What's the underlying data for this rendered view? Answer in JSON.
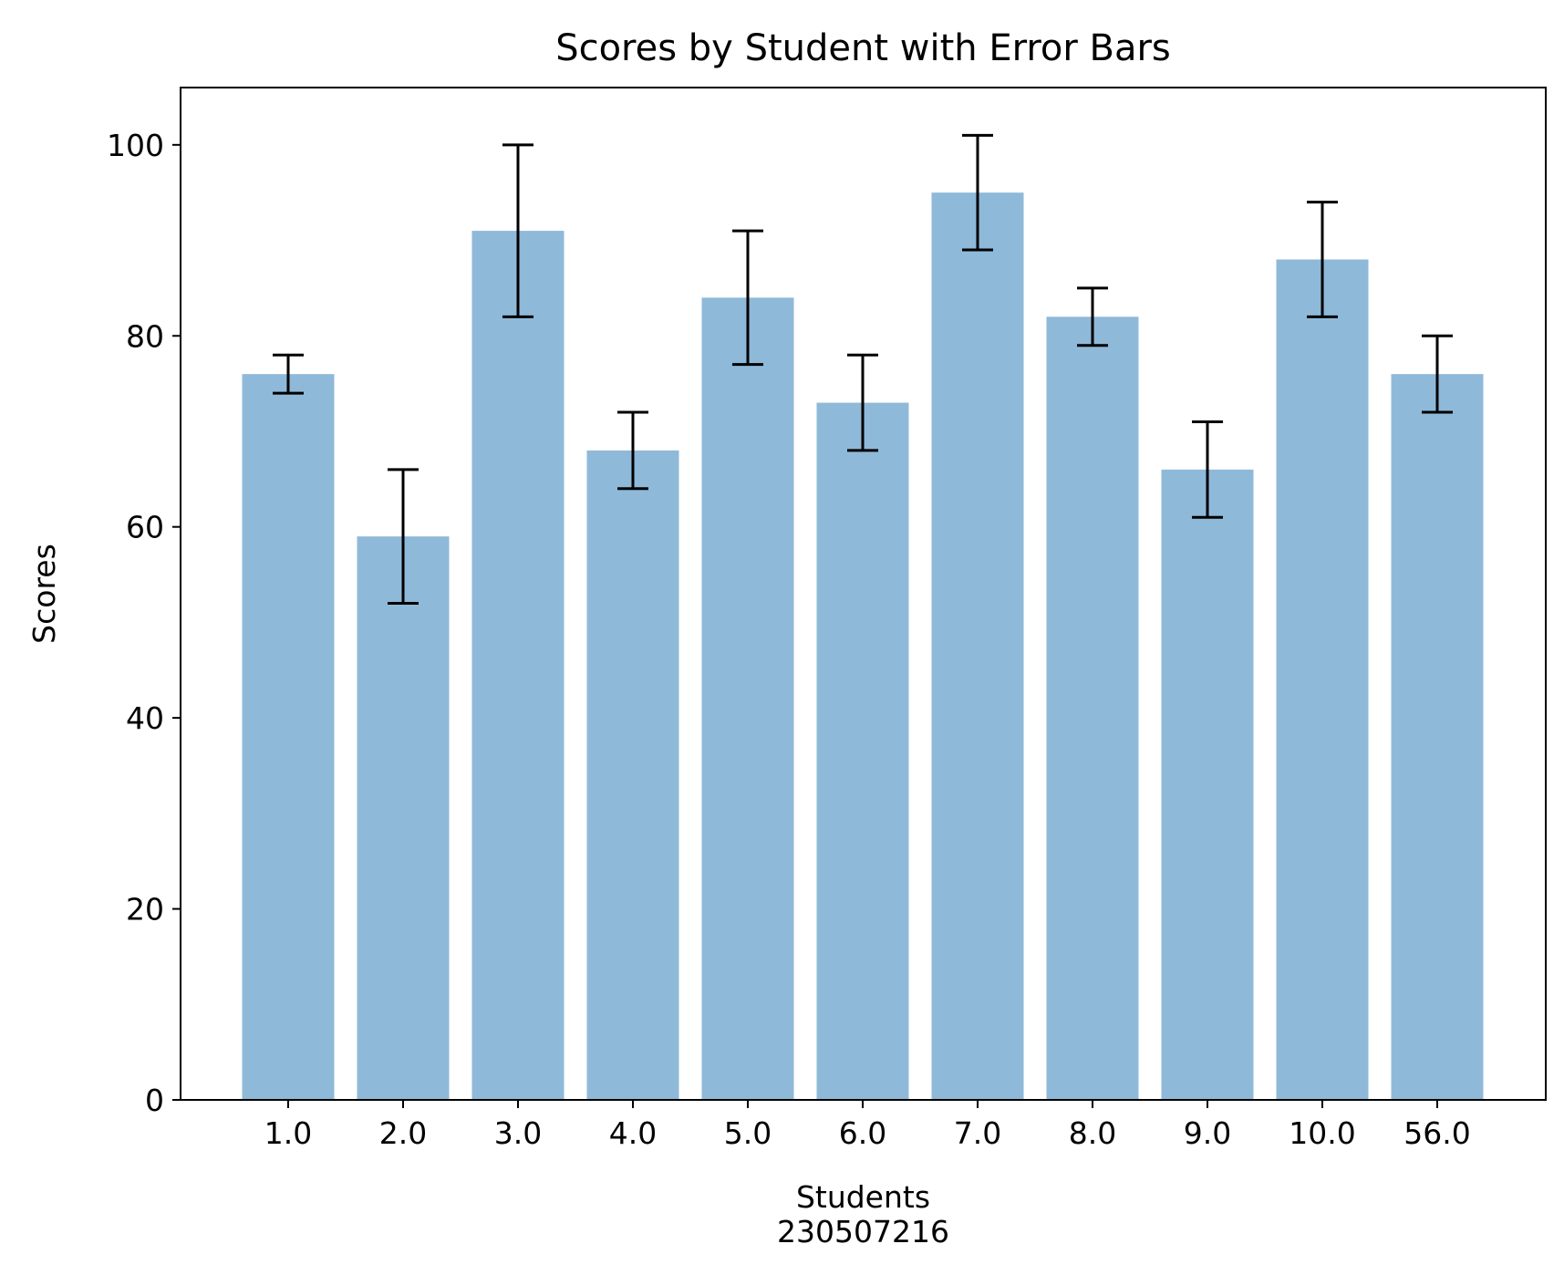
{
  "chart_data": {
    "type": "bar",
    "title": "Scores by Student with Error Bars",
    "xlabel": "Students",
    "xlabel_secondary": "230507216",
    "ylabel": "Scores",
    "categories": [
      "1.0",
      "2.0",
      "3.0",
      "4.0",
      "5.0",
      "6.0",
      "7.0",
      "8.0",
      "9.0",
      "10.0",
      "56.0"
    ],
    "values": [
      76,
      59,
      91,
      68,
      84,
      73,
      95,
      82,
      66,
      88,
      76
    ],
    "error_ranges": [
      [
        74,
        78
      ],
      [
        52,
        66
      ],
      [
        82,
        100
      ],
      [
        64,
        72
      ],
      [
        77,
        91
      ],
      [
        68,
        78
      ],
      [
        89,
        101
      ],
      [
        79,
        85
      ],
      [
        61,
        71
      ],
      [
        82,
        94
      ],
      [
        72,
        80
      ]
    ],
    "ylim": [
      0,
      106
    ],
    "yticks": [
      0,
      20,
      40,
      60,
      80,
      100
    ],
    "grid": false,
    "bar_color": "#8fb9d9",
    "error_color": "#000000"
  }
}
